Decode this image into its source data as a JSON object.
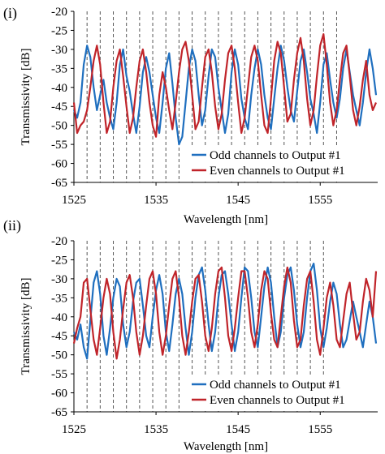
{
  "chart_data": [
    {
      "type": "line",
      "panel_label": "(i)",
      "xlabel": "Wavelength [nm]",
      "ylabel": "Transmissivity [dB]",
      "xlim": [
        1525,
        1562
      ],
      "ylim": [
        -65,
        -20
      ],
      "xticks": [
        1525,
        1535,
        1545,
        1555
      ],
      "xtick_labels": [
        "1525",
        "1535",
        "1545",
        "1555"
      ],
      "yticks": [
        -20,
        -25,
        -30,
        -35,
        -40,
        -45,
        -50,
        -55,
        -60,
        -65
      ],
      "ytick_labels": [
        "-20",
        "-25",
        "-30",
        "-35",
        "-40",
        "-45",
        "-50",
        "-55",
        "-60",
        "-65"
      ],
      "channel_markers_nm": [
        1526.6,
        1528.2,
        1529.8,
        1531.4,
        1533.0,
        1534.6,
        1536.2,
        1537.8,
        1539.4,
        1541.0,
        1542.6,
        1544.2,
        1545.8,
        1547.4,
        1549.0,
        1550.6,
        1552.2,
        1553.8,
        1555.4,
        1557.0
      ],
      "legend_position": "bottom-right",
      "series": [
        {
          "name": "Odd channels to Output #1",
          "color": "#1f6fbf",
          "x": [
            1525.0,
            1525.4,
            1525.8,
            1526.2,
            1526.6,
            1527.0,
            1527.4,
            1527.8,
            1528.2,
            1528.6,
            1529.0,
            1529.4,
            1529.8,
            1530.2,
            1530.6,
            1531.0,
            1531.4,
            1531.8,
            1532.2,
            1532.6,
            1533.0,
            1533.4,
            1533.8,
            1534.2,
            1534.6,
            1535.0,
            1535.4,
            1535.8,
            1536.2,
            1536.6,
            1537.0,
            1537.4,
            1537.8,
            1538.2,
            1538.6,
            1539.0,
            1539.4,
            1539.8,
            1540.2,
            1540.6,
            1541.0,
            1541.4,
            1541.8,
            1542.2,
            1542.6,
            1543.0,
            1543.4,
            1543.8,
            1544.2,
            1544.6,
            1545.0,
            1545.4,
            1545.8,
            1546.2,
            1546.6,
            1547.0,
            1547.4,
            1547.8,
            1548.2,
            1548.6,
            1549.0,
            1549.4,
            1549.8,
            1550.2,
            1550.6,
            1551.0,
            1551.4,
            1551.8,
            1552.2,
            1552.6,
            1553.0,
            1553.4,
            1553.8,
            1554.2,
            1554.6,
            1555.0,
            1555.4,
            1555.8,
            1556.2,
            1556.6,
            1557.0,
            1557.4,
            1557.8,
            1558.2,
            1558.6,
            1559.0,
            1559.4,
            1559.8,
            1560.2,
            1560.6,
            1561.0,
            1561.4,
            1561.8
          ],
          "y": [
            -46,
            -48,
            -44,
            -34,
            -29,
            -32,
            -40,
            -46,
            -42,
            -38,
            -44,
            -48,
            -51,
            -44,
            -34,
            -30,
            -37,
            -41,
            -47,
            -52,
            -45,
            -36,
            -32,
            -36,
            -42,
            -48,
            -52,
            -44,
            -35,
            -31,
            -39,
            -48,
            -55,
            -53,
            -44,
            -35,
            -30,
            -33,
            -42,
            -50,
            -46,
            -37,
            -30,
            -32,
            -40,
            -46,
            -52,
            -47,
            -36,
            -30,
            -34,
            -43,
            -48,
            -51,
            -42,
            -35,
            -30,
            -34,
            -42,
            -48,
            -51,
            -43,
            -35,
            -29,
            -33,
            -40,
            -46,
            -49,
            -41,
            -33,
            -30,
            -36,
            -43,
            -47,
            -52,
            -44,
            -34,
            -31,
            -38,
            -44,
            -48,
            -43,
            -35,
            -30,
            -36,
            -42,
            -46,
            -50,
            -44,
            -36,
            -30,
            -35,
            -42
          ]
        },
        {
          "name": "Even channels to Output #1",
          "color": "#c0242a",
          "x": [
            1525.0,
            1525.4,
            1525.8,
            1526.2,
            1526.6,
            1527.0,
            1527.4,
            1527.8,
            1528.2,
            1528.6,
            1529.0,
            1529.4,
            1529.8,
            1530.2,
            1530.6,
            1531.0,
            1531.4,
            1531.8,
            1532.2,
            1532.6,
            1533.0,
            1533.4,
            1533.8,
            1534.2,
            1534.6,
            1535.0,
            1535.4,
            1535.8,
            1536.2,
            1536.6,
            1537.0,
            1537.4,
            1537.8,
            1538.2,
            1538.6,
            1539.0,
            1539.4,
            1539.8,
            1540.2,
            1540.6,
            1541.0,
            1541.4,
            1541.8,
            1542.2,
            1542.6,
            1543.0,
            1543.4,
            1543.8,
            1544.2,
            1544.6,
            1545.0,
            1545.4,
            1545.8,
            1546.2,
            1546.6,
            1547.0,
            1547.4,
            1547.8,
            1548.2,
            1548.6,
            1549.0,
            1549.4,
            1549.8,
            1550.2,
            1550.6,
            1551.0,
            1551.4,
            1551.8,
            1552.2,
            1552.6,
            1553.0,
            1553.4,
            1553.8,
            1554.2,
            1554.6,
            1555.0,
            1555.4,
            1555.8,
            1556.2,
            1556.6,
            1557.0,
            1557.4,
            1557.8,
            1558.2,
            1558.6,
            1559.0,
            1559.4,
            1559.8,
            1560.2,
            1560.6,
            1561.0,
            1561.4,
            1561.8
          ],
          "y": [
            -44,
            -52,
            -50,
            -49,
            -46,
            -40,
            -33,
            -29,
            -34,
            -44,
            -52,
            -49,
            -40,
            -33,
            -30,
            -37,
            -45,
            -52,
            -48,
            -40,
            -33,
            -30,
            -36,
            -44,
            -50,
            -53,
            -42,
            -36,
            -40,
            -46,
            -51,
            -44,
            -36,
            -30,
            -28,
            -33,
            -42,
            -51,
            -49,
            -40,
            -32,
            -30,
            -36,
            -45,
            -51,
            -47,
            -38,
            -31,
            -29,
            -35,
            -44,
            -52,
            -48,
            -40,
            -32,
            -29,
            -33,
            -42,
            -50,
            -52,
            -43,
            -33,
            -28,
            -31,
            -40,
            -49,
            -47,
            -38,
            -31,
            -27,
            -33,
            -43,
            -50,
            -46,
            -37,
            -29,
            -26,
            -34,
            -44,
            -50,
            -46,
            -38,
            -31,
            -29,
            -37,
            -46,
            -50,
            -45,
            -38,
            -33,
            -42,
            -46,
            -44
          ]
        }
      ]
    },
    {
      "type": "line",
      "panel_label": "(ii)",
      "xlabel": "Wavelength [nm]",
      "ylabel": "Transmissivity [dB]",
      "xlim": [
        1525,
        1562
      ],
      "ylim": [
        -65,
        -20
      ],
      "xticks": [
        1525,
        1535,
        1545,
        1555
      ],
      "xtick_labels": [
        "1525",
        "1535",
        "1545",
        "1555"
      ],
      "yticks": [
        -20,
        -25,
        -30,
        -35,
        -40,
        -45,
        -50,
        -55,
        -60,
        -65
      ],
      "ytick_labels": [
        "-20",
        "-25",
        "-30",
        "-35",
        "-40",
        "-45",
        "-50",
        "-55",
        "-60",
        "-65"
      ],
      "channel_markers_nm": [
        1526.6,
        1528.2,
        1529.8,
        1531.4,
        1533.0,
        1534.6,
        1536.2,
        1537.8,
        1539.4,
        1541.0,
        1542.6,
        1544.2,
        1545.8,
        1547.4,
        1549.0,
        1550.6,
        1552.2,
        1553.8,
        1555.4
      ],
      "legend_position": "bottom-right",
      "series": [
        {
          "name": "Odd channels to Output #1",
          "color": "#1f6fbf",
          "x": [
            1525.0,
            1525.4,
            1525.8,
            1526.2,
            1526.6,
            1527.0,
            1527.4,
            1527.8,
            1528.2,
            1528.6,
            1529.0,
            1529.4,
            1529.8,
            1530.2,
            1530.6,
            1531.0,
            1531.4,
            1531.8,
            1532.2,
            1532.6,
            1533.0,
            1533.4,
            1533.8,
            1534.2,
            1534.6,
            1535.0,
            1535.4,
            1535.8,
            1536.2,
            1536.6,
            1537.0,
            1537.4,
            1537.8,
            1538.2,
            1538.6,
            1539.0,
            1539.4,
            1539.8,
            1540.2,
            1540.6,
            1541.0,
            1541.4,
            1541.8,
            1542.2,
            1542.6,
            1543.0,
            1543.4,
            1543.8,
            1544.2,
            1544.6,
            1545.0,
            1545.4,
            1545.8,
            1546.2,
            1546.6,
            1547.0,
            1547.4,
            1547.8,
            1548.2,
            1548.6,
            1549.0,
            1549.4,
            1549.8,
            1550.2,
            1550.6,
            1551.0,
            1551.4,
            1551.8,
            1552.2,
            1552.6,
            1553.0,
            1553.4,
            1553.8,
            1554.2,
            1554.6,
            1555.0,
            1555.4,
            1555.8,
            1556.2,
            1556.6,
            1557.0,
            1557.4,
            1557.8,
            1558.2,
            1558.6,
            1559.0,
            1559.4,
            1559.8,
            1560.2,
            1560.6,
            1561.0,
            1561.4,
            1561.8
          ],
          "y": [
            -44,
            -46,
            -42,
            -48,
            -51,
            -41,
            -31,
            -28,
            -34,
            -45,
            -50,
            -43,
            -35,
            -30,
            -32,
            -42,
            -48,
            -44,
            -36,
            -31,
            -30,
            -37,
            -45,
            -48,
            -40,
            -33,
            -29,
            -34,
            -44,
            -49,
            -42,
            -34,
            -30,
            -34,
            -43,
            -50,
            -44,
            -35,
            -29,
            -27,
            -33,
            -42,
            -49,
            -44,
            -35,
            -29,
            -28,
            -34,
            -42,
            -49,
            -44,
            -35,
            -27,
            -28,
            -35,
            -44,
            -48,
            -40,
            -32,
            -27,
            -31,
            -40,
            -48,
            -44,
            -35,
            -29,
            -27,
            -33,
            -42,
            -48,
            -44,
            -35,
            -28,
            -26,
            -33,
            -43,
            -48,
            -43,
            -36,
            -31,
            -34,
            -42,
            -48,
            -46,
            -41,
            -36,
            -40,
            -44,
            -48,
            -42,
            -36,
            -40,
            -47
          ]
        },
        {
          "name": "Even channels to Output #1",
          "color": "#c0242a",
          "x": [
            1525.0,
            1525.4,
            1525.8,
            1526.2,
            1526.6,
            1527.0,
            1527.4,
            1527.8,
            1528.2,
            1528.6,
            1529.0,
            1529.4,
            1529.8,
            1530.2,
            1530.6,
            1531.0,
            1531.4,
            1531.8,
            1532.2,
            1532.6,
            1533.0,
            1533.4,
            1533.8,
            1534.2,
            1534.6,
            1535.0,
            1535.4,
            1535.8,
            1536.2,
            1536.6,
            1537.0,
            1537.4,
            1537.8,
            1538.2,
            1538.6,
            1539.0,
            1539.4,
            1539.8,
            1540.2,
            1540.6,
            1541.0,
            1541.4,
            1541.8,
            1542.2,
            1542.6,
            1543.0,
            1543.4,
            1543.8,
            1544.2,
            1544.6,
            1545.0,
            1545.4,
            1545.8,
            1546.2,
            1546.6,
            1547.0,
            1547.4,
            1547.8,
            1548.2,
            1548.6,
            1549.0,
            1549.4,
            1549.8,
            1550.2,
            1550.6,
            1551.0,
            1551.4,
            1551.8,
            1552.2,
            1552.6,
            1553.0,
            1553.4,
            1553.8,
            1554.2,
            1554.6,
            1555.0,
            1555.4,
            1555.8,
            1556.2,
            1556.6,
            1557.0,
            1557.4,
            1557.8,
            1558.2,
            1558.6,
            1559.0,
            1559.4,
            1559.8,
            1560.2,
            1560.6,
            1561.0,
            1561.4,
            1561.8
          ],
          "y": [
            -47,
            -43,
            -40,
            -31,
            -30,
            -38,
            -46,
            -50,
            -43,
            -35,
            -30,
            -34,
            -44,
            -51,
            -46,
            -38,
            -31,
            -29,
            -35,
            -44,
            -50,
            -45,
            -37,
            -30,
            -28,
            -34,
            -44,
            -50,
            -45,
            -37,
            -30,
            -28,
            -35,
            -45,
            -50,
            -44,
            -36,
            -30,
            -29,
            -36,
            -45,
            -49,
            -43,
            -34,
            -28,
            -27,
            -35,
            -45,
            -49,
            -43,
            -35,
            -28,
            -28,
            -35,
            -44,
            -48,
            -42,
            -33,
            -28,
            -30,
            -39,
            -46,
            -48,
            -40,
            -32,
            -27,
            -31,
            -41,
            -48,
            -46,
            -37,
            -30,
            -28,
            -36,
            -46,
            -50,
            -43,
            -35,
            -31,
            -37,
            -46,
            -48,
            -41,
            -34,
            -31,
            -39,
            -46,
            -44,
            -36,
            -30,
            -33,
            -40,
            -28
          ]
        }
      ]
    }
  ]
}
